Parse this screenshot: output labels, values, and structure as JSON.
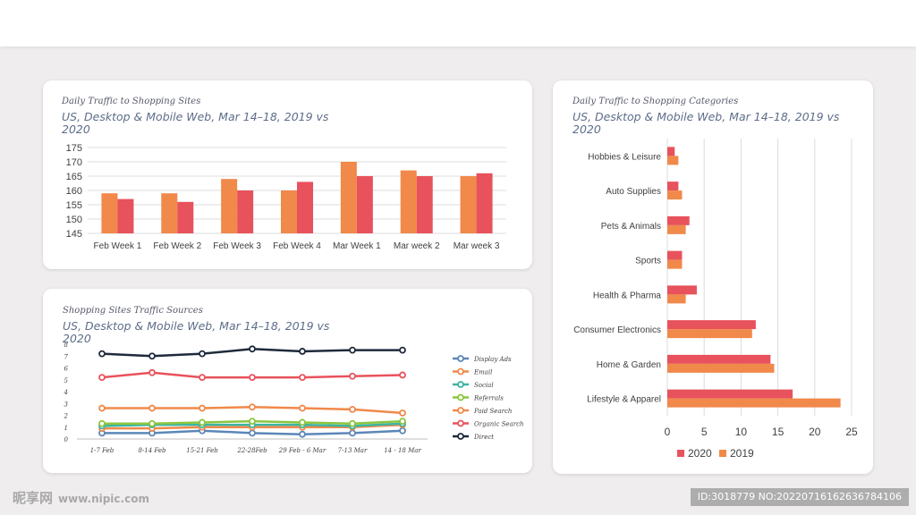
{
  "colors": {
    "background": "#efedee",
    "orange": "#f0894a",
    "red": "#e8525c",
    "grid": "#d9d9d9",
    "text": "#404040"
  },
  "chart_data": [
    {
      "id": "daily-traffic",
      "type": "bar",
      "kicker": "Daily Traffic to Shopping Sites",
      "subtitle": "US, Desktop & Mobile Web, Mar 14–18, 2019 vs 2020",
      "categories": [
        "Feb Week 1",
        "Feb Week 2",
        "Feb Week 3",
        "Feb Week 4",
        "Mar Week 1",
        "Mar week 2",
        "Mar week 3"
      ],
      "series": [
        {
          "name": "2019",
          "color": "#f0894a",
          "values": [
            159,
            159,
            164,
            160,
            170,
            167,
            165
          ]
        },
        {
          "name": "2020",
          "color": "#e8525c",
          "values": [
            157,
            156,
            160,
            163,
            165,
            165,
            166
          ]
        }
      ],
      "ylim": [
        145,
        175
      ],
      "yticks": [
        145,
        150,
        155,
        160,
        165,
        170,
        175
      ],
      "grid": true
    },
    {
      "id": "traffic-sources",
      "type": "line",
      "kicker": "Shopping Sites Traffic Sources",
      "subtitle": "US, Desktop & Mobile Web, Mar 14–18, 2019 vs 2020",
      "categories": [
        "1-7 Feb",
        "8-14 Feb",
        "15-21 Feb",
        "22-28Feb",
        "29 Feb - 6 Mar",
        "7-13 Mar",
        "14 - 18 Mar"
      ],
      "series": [
        {
          "name": "Display Ads",
          "color": "#5b87b8",
          "values": [
            0.5,
            0.5,
            0.7,
            0.5,
            0.4,
            0.5,
            0.7
          ]
        },
        {
          "name": "Email",
          "color": "#f0894a",
          "values": [
            0.9,
            0.9,
            1.0,
            1.0,
            1.0,
            1.0,
            1.2
          ]
        },
        {
          "name": "Social",
          "color": "#3cb4a4",
          "values": [
            1.1,
            1.2,
            1.2,
            1.2,
            1.2,
            1.1,
            1.3
          ]
        },
        {
          "name": "Referrals",
          "color": "#8cc63f",
          "values": [
            1.3,
            1.3,
            1.4,
            1.5,
            1.4,
            1.3,
            1.5
          ]
        },
        {
          "name": "Paid Search",
          "color": "#f0894a",
          "values": [
            2.6,
            2.6,
            2.6,
            2.7,
            2.6,
            2.5,
            2.2
          ]
        },
        {
          "name": "Organic Search",
          "color": "#e8525c",
          "values": [
            5.2,
            5.6,
            5.2,
            5.2,
            5.2,
            5.3,
            5.4
          ]
        },
        {
          "name": "Direct",
          "color": "#1e2a3c",
          "values": [
            7.2,
            7.0,
            7.2,
            7.6,
            7.4,
            7.5,
            7.5
          ]
        }
      ],
      "ylim": [
        0,
        8
      ],
      "yticks": [
        0,
        1,
        2,
        3,
        4,
        5,
        6,
        7,
        8
      ],
      "grid": false,
      "legend": "right"
    },
    {
      "id": "shopping-categories",
      "type": "bar",
      "orientation": "horizontal",
      "kicker": "Daily Traffic to Shopping Categories",
      "subtitle": "US, Desktop & Mobile Web, Mar 14–18, 2019 vs 2020",
      "categories": [
        "Hobbies & Leisure",
        "Auto Supplies",
        "Pets & Animals",
        "Sports",
        "Health & Pharma",
        "Consumer Electronics",
        "Home & Garden",
        "Lifestyle & Apparel"
      ],
      "series": [
        {
          "name": "2020",
          "color": "#e8525c",
          "values": [
            1,
            1.5,
            3,
            2,
            4,
            12,
            14,
            17
          ]
        },
        {
          "name": "2019",
          "color": "#f0894a",
          "values": [
            1.5,
            2,
            2.5,
            2,
            2.5,
            11.5,
            14.5,
            23.5
          ]
        }
      ],
      "xlim": [
        0,
        25
      ],
      "xticks": [
        0,
        5,
        10,
        15,
        20,
        25
      ],
      "grid": true,
      "legend": "bottom"
    }
  ],
  "watermark": {
    "logo": "昵享网",
    "url": "www.nipic.com",
    "id_text": "ID:3018779 NO:20220716162636784106"
  }
}
